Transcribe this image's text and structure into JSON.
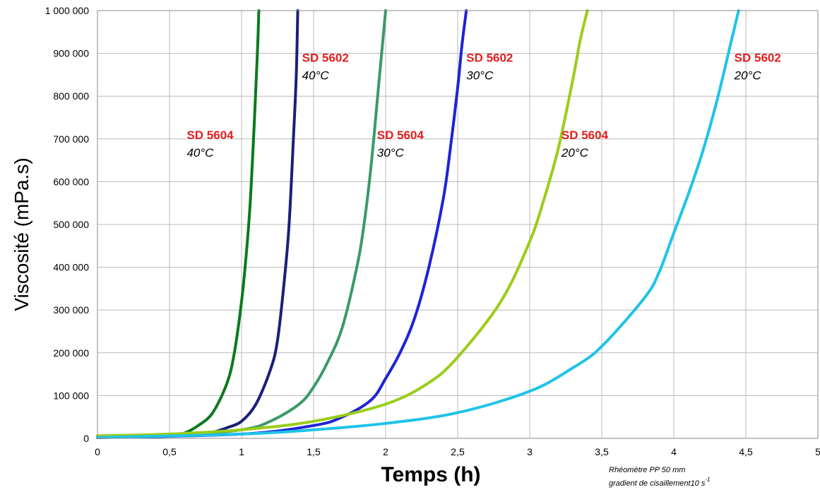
{
  "chart_data": {
    "type": "line",
    "title": "",
    "xlabel": "Temps (h)",
    "ylabel": "Viscosité (mPa.s)",
    "xlim": [
      0,
      5
    ],
    "ylim": [
      0,
      1000000
    ],
    "x_ticks": [
      "0",
      "0,5",
      "1",
      "1,5",
      "2",
      "2,5",
      "3",
      "3,5",
      "4",
      "4,5",
      "5"
    ],
    "y_ticks": [
      "0",
      "100 000",
      "200 000",
      "300 000",
      "400 000",
      "500 000",
      "600 000",
      "700 000",
      "800 000",
      "900 000",
      "1 000 000"
    ],
    "grid": true,
    "legend": "none",
    "series": [
      {
        "product": "SD 5604",
        "temperature": "40°C",
        "color": "#0a7a1e",
        "x": [
          0,
          0.3,
          0.5,
          0.6,
          0.7,
          0.8,
          0.9,
          0.95,
          1.0,
          1.03,
          1.06,
          1.09,
          1.11,
          1.12
        ],
        "y": [
          3000,
          4000,
          6000,
          12000,
          30000,
          60000,
          130000,
          200000,
          320000,
          420000,
          550000,
          750000,
          900000,
          1000000
        ]
      },
      {
        "product": "SD 5602",
        "temperature": "40°C",
        "color": "#1a1f7a",
        "x": [
          0,
          0.5,
          0.7,
          0.8,
          0.9,
          1.0,
          1.1,
          1.2,
          1.25,
          1.3,
          1.33,
          1.36,
          1.38,
          1.39
        ],
        "y": [
          2000,
          5000,
          9000,
          14000,
          25000,
          40000,
          80000,
          160000,
          230000,
          380000,
          500000,
          700000,
          850000,
          1000000
        ]
      },
      {
        "product": "SD 5604",
        "temperature": "30°C",
        "color": "#3a9a68",
        "x": [
          0,
          0.5,
          1.0,
          1.2,
          1.4,
          1.5,
          1.6,
          1.7,
          1.8,
          1.85,
          1.9,
          1.95,
          2.0
        ],
        "y": [
          2000,
          6000,
          20000,
          40000,
          80000,
          120000,
          180000,
          260000,
          400000,
          500000,
          640000,
          820000,
          1000000
        ]
      },
      {
        "product": "SD 5602",
        "temperature": "30°C",
        "color": "#1f22d8",
        "x": [
          0,
          1.0,
          1.5,
          1.7,
          1.9,
          2.0,
          2.1,
          2.2,
          2.3,
          2.4,
          2.45,
          2.5,
          2.53,
          2.56
        ],
        "y": [
          2000,
          10000,
          30000,
          50000,
          90000,
          140000,
          200000,
          280000,
          400000,
          560000,
          680000,
          820000,
          920000,
          1000000
        ]
      },
      {
        "product": "SD 5604",
        "temperature": "20°C",
        "color": "#9acd19",
        "x": [
          0,
          0.5,
          1.0,
          1.5,
          2.0,
          2.3,
          2.5,
          2.8,
          3.0,
          3.1,
          3.2,
          3.3,
          3.35,
          3.4
        ],
        "y": [
          6000,
          10000,
          20000,
          40000,
          80000,
          130000,
          190000,
          320000,
          460000,
          560000,
          680000,
          840000,
          930000,
          1000000
        ]
      },
      {
        "product": "SD 5602",
        "temperature": "20°C",
        "color": "#1fc3e8",
        "x": [
          0,
          1.0,
          1.5,
          2.0,
          2.5,
          3.0,
          3.3,
          3.5,
          3.8,
          3.9,
          4.0,
          4.1,
          4.2,
          4.3,
          4.4,
          4.45
        ],
        "y": [
          2000,
          10000,
          20000,
          35000,
          60000,
          110000,
          165000,
          215000,
          330000,
          390000,
          480000,
          570000,
          670000,
          790000,
          930000,
          1000000
        ]
      }
    ],
    "annotations": [
      {
        "name": "SD 5604",
        "temp": "40°C",
        "x": 0.62,
        "y": 700000
      },
      {
        "name": "SD 5602",
        "temp": "40°C",
        "x": 1.42,
        "y": 880000
      },
      {
        "name": "SD 5604",
        "temp": "30°C",
        "x": 1.94,
        "y": 700000
      },
      {
        "name": "SD 5602",
        "temp": "30°C",
        "x": 2.56,
        "y": 880000
      },
      {
        "name": "SD 5604",
        "temp": "20°C",
        "x": 3.22,
        "y": 700000
      },
      {
        "name": "SD 5602",
        "temp": "20°C",
        "x": 4.42,
        "y": 880000
      }
    ],
    "note_line1": "Rhéomètre PP 50 mm",
    "note_line2": "gradient de cisaillement10 s",
    "note_sup": "-1"
  }
}
